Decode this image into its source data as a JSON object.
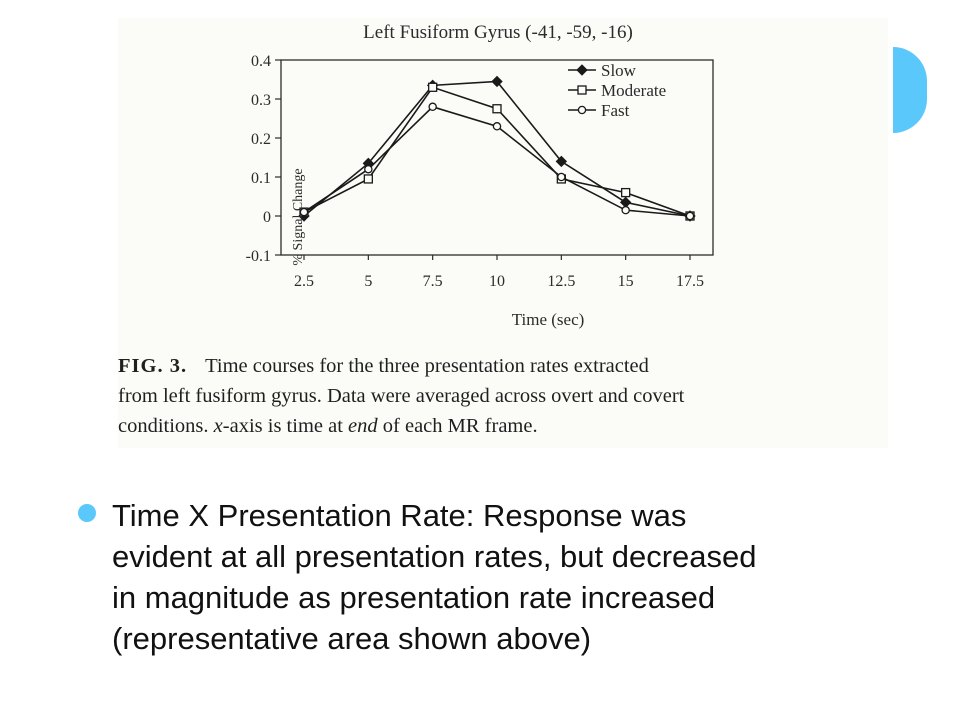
{
  "chart_data": {
    "type": "line",
    "title": "Left Fusiform Gyrus (-41, -59, -16)",
    "xlabel": "Time (sec)",
    "ylabel": "% Signal Change",
    "categories": [
      "2.5",
      "5",
      "7.5",
      "10",
      "12.5",
      "15",
      "17.5"
    ],
    "yticks": [
      "0.4",
      "0.3",
      "0.2",
      "0.1",
      "0",
      "-0.1"
    ],
    "ylim": [
      -0.1,
      0.4
    ],
    "legend_position": "top-right",
    "grid": false,
    "series": [
      {
        "name": "Slow",
        "marker": "filled-diamond",
        "values": [
          0.0,
          0.135,
          0.335,
          0.345,
          0.14,
          0.035,
          0.0
        ]
      },
      {
        "name": "Moderate",
        "marker": "open-square",
        "values": [
          0.01,
          0.095,
          0.33,
          0.275,
          0.095,
          0.06,
          0.0
        ]
      },
      {
        "name": "Fast",
        "marker": "open-circle",
        "values": [
          0.01,
          0.12,
          0.28,
          0.23,
          0.1,
          0.015,
          0.0
        ]
      }
    ]
  },
  "caption": {
    "fig_label": "FIG. 3.",
    "line1": "Time courses for the three presentation rates extracted",
    "line2": "from left fusiform gyrus. Data were averaged across overt and covert",
    "line3_pre": "conditions. ",
    "line3_em1": "x",
    "line3_mid": "-axis is time at ",
    "line3_em2": "end",
    "line3_post": " of each MR frame."
  },
  "bullet": {
    "lines": [
      "Time X Presentation Rate: Response was",
      "evident at all presentation rates, but decreased",
      "in magnitude as presentation rate increased",
      "(representative area shown above)"
    ]
  },
  "colors": {
    "accent": "#5ac8fa",
    "ink": "#1f1f1f"
  }
}
